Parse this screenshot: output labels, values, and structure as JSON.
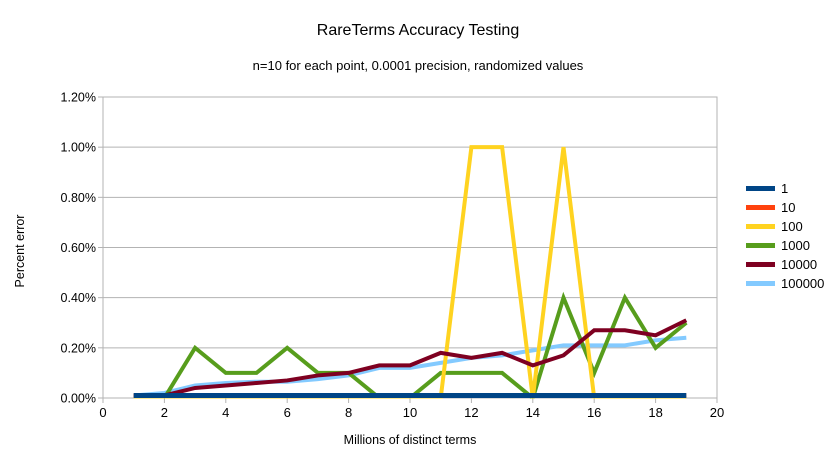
{
  "chart_data": {
    "type": "line",
    "title": "RareTerms Accuracy Testing",
    "subtitle": "n=10 for each point, 0.0001 precision, randomized values",
    "xlabel": "Millions of distinct terms",
    "ylabel": "Percent error",
    "xlim": [
      0,
      20
    ],
    "ylim_percent": [
      0,
      1.2
    ],
    "x_ticks": [
      0,
      2,
      4,
      6,
      8,
      10,
      12,
      14,
      16,
      18,
      20
    ],
    "y_ticks_percent": [
      0,
      0.2,
      0.4,
      0.6,
      0.8,
      1.0,
      1.2
    ],
    "y_tick_labels": [
      "0.00%",
      "0.20%",
      "0.40%",
      "0.60%",
      "0.80%",
      "1.00%",
      "1.20%"
    ],
    "grid": true,
    "legend_position": "right",
    "grid_color": "#b3b3b3",
    "axis_color": "#b3b3b3",
    "x": [
      1,
      2,
      3,
      4,
      5,
      6,
      7,
      8,
      9,
      10,
      11,
      12,
      13,
      14,
      15,
      16,
      17,
      18,
      19
    ],
    "series": [
      {
        "name": "1",
        "color": "#004586",
        "values_percent": [
          0.01,
          0.01,
          0.01,
          0.01,
          0.01,
          0.01,
          0.01,
          0.01,
          0.01,
          0.01,
          0.01,
          0.01,
          0.01,
          0.01,
          0.01,
          0.01,
          0.01,
          0.01,
          0.01
        ]
      },
      {
        "name": "10",
        "color": "#ff420e",
        "values_percent": [
          0.01,
          0.01,
          0.01,
          0.01,
          0.01,
          0.01,
          0.01,
          0.01,
          0.01,
          0.01,
          0.01,
          0.01,
          0.01,
          0.01,
          0.01,
          0.01,
          0.01,
          0.01,
          0.01
        ]
      },
      {
        "name": "100",
        "color": "#ffd320",
        "values_percent": [
          0,
          0,
          0,
          0,
          0,
          0,
          0,
          0,
          0,
          0,
          0,
          1.0,
          1.0,
          0,
          1.0,
          0,
          0,
          0,
          0
        ]
      },
      {
        "name": "1000",
        "color": "#579d1c",
        "values_percent": [
          0.01,
          0,
          0.2,
          0.1,
          0.1,
          0.2,
          0.1,
          0.1,
          0,
          0,
          0.1,
          0.1,
          0.1,
          0,
          0.4,
          0.1,
          0.4,
          0.2,
          0.3
        ]
      },
      {
        "name": "10000",
        "color": "#7e0021",
        "values_percent": [
          0.01,
          0.01,
          0.04,
          0.05,
          0.06,
          0.07,
          0.09,
          0.1,
          0.13,
          0.13,
          0.18,
          0.16,
          0.18,
          0.13,
          0.17,
          0.27,
          0.27,
          0.25,
          0.31
        ]
      },
      {
        "name": "100000",
        "color": "#83caff",
        "values_percent": [
          0.01,
          0.02,
          0.05,
          0.06,
          0.065,
          0.065,
          0.075,
          0.09,
          0.12,
          0.12,
          0.14,
          0.16,
          0.17,
          0.19,
          0.21,
          0.21,
          0.21,
          0.23,
          0.24
        ]
      }
    ]
  }
}
